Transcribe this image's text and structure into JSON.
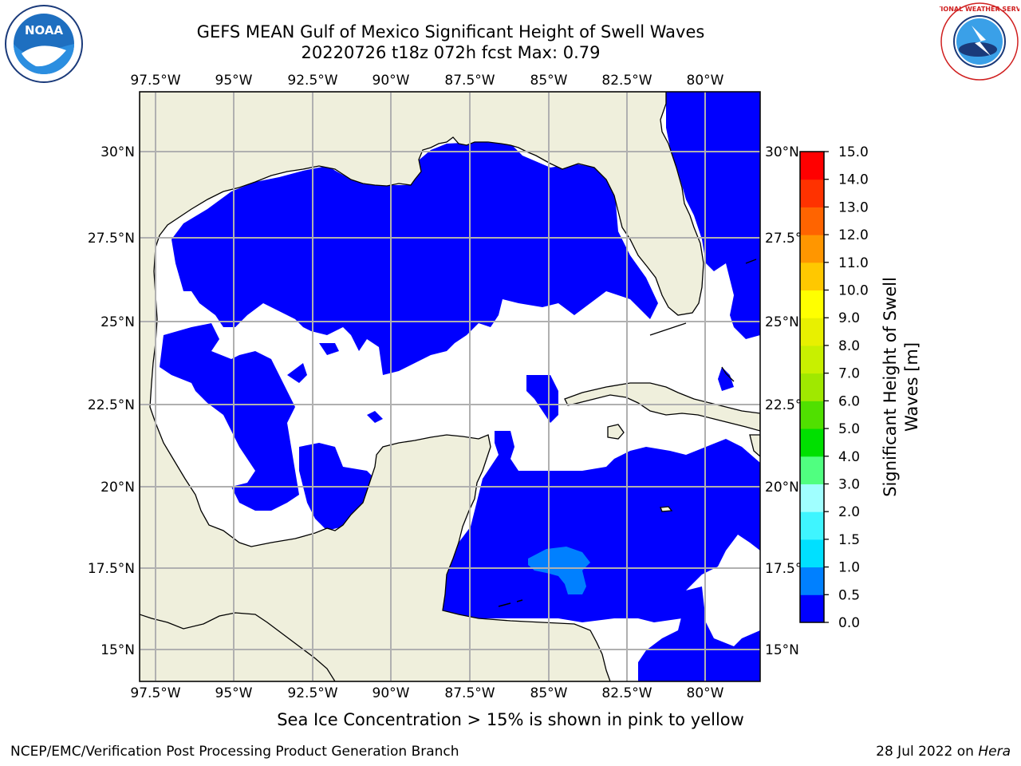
{
  "title_line1": "GEFS MEAN Gulf of Mexico Significant Height of Swell Waves",
  "title_line2": "20220726 t18z 072h fcst   Max: 0.79",
  "lon_ticks": [
    "97.5°W",
    "95°W",
    "92.5°W",
    "90°W",
    "87.5°W",
    "85°W",
    "82.5°W",
    "80°W"
  ],
  "lat_ticks_left": [
    "30°N",
    "27.5°N",
    "25°N",
    "22.5°N",
    "20°N",
    "17.5°N",
    "15°N"
  ],
  "lat_ticks_right": [
    "30°N",
    "27.5°",
    "25°N",
    "22.5°",
    "20°N",
    "17.5°",
    "15°N"
  ],
  "colorbar": {
    "label_line1": "Significant Height of Swell",
    "label_line2": "Waves [m]",
    "levels": [
      "0.0",
      "0.5",
      "1.0",
      "1.5",
      "2.0",
      "3.0",
      "4.0",
      "5.0",
      "6.0",
      "7.0",
      "8.0",
      "9.0",
      "10.0",
      "11.0",
      "12.0",
      "13.0",
      "14.0",
      "15.0"
    ],
    "colors": [
      "#0000ff",
      "#0080ff",
      "#00e0ff",
      "#3ff5ff",
      "#a0ffff",
      "#50ff80",
      "#00e000",
      "#50e000",
      "#a0e800",
      "#c8f000",
      "#e8f000",
      "#ffff00",
      "#ffc800",
      "#ff9600",
      "#ff6400",
      "#ff3200",
      "#ff0000"
    ]
  },
  "note": "Sea Ice Concentration > 15% is shown in pink to yellow",
  "footer_left": "NCEP/EMC/Verification Post Processing Product Generation Branch",
  "footer_date": "28 Jul 2022 on",
  "footer_machine": "Hera",
  "logos": {
    "left": "NOAA",
    "right": "NATIONAL WEATHER SERVICE"
  },
  "map_colors": {
    "land": "#efefdc",
    "swell_low": "#0000ff",
    "swell_mid": "#0080ff",
    "grid": "#b0b0b0"
  }
}
